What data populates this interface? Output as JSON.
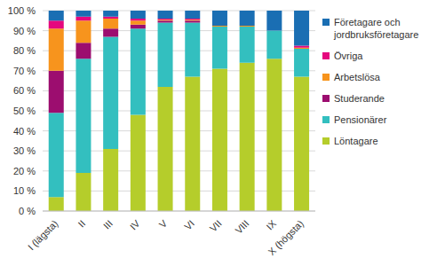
{
  "chart_data": {
    "type": "bar",
    "stacked": true,
    "grid": true,
    "legend": "right",
    "categories": [
      "I (lägsta)",
      "II",
      "III",
      "IV",
      "V",
      "VI",
      "VII",
      "VIII",
      "IX",
      "X (högsta)"
    ],
    "series": [
      {
        "name": "Löntagare",
        "color": "#b5cd2b",
        "values": [
          7,
          19,
          31,
          48,
          62,
          67,
          71,
          74,
          76,
          67
        ]
      },
      {
        "name": "Pensionärer",
        "color": "#33bfbf",
        "values": [
          42,
          57,
          56,
          43,
          32,
          27,
          21,
          18,
          14,
          14
        ]
      },
      {
        "name": "Studerande",
        "color": "#9c0d6f",
        "values": [
          21,
          8,
          4,
          2,
          1,
          1,
          0,
          0,
          0,
          0
        ]
      },
      {
        "name": "Arbetslösa",
        "color": "#f7941d",
        "values": [
          21,
          11,
          5,
          2,
          0.5,
          0.5,
          0.5,
          0.5,
          0,
          0.5
        ]
      },
      {
        "name": "Övriga",
        "color": "#e5087e",
        "values": [
          4,
          2,
          1,
          1,
          0.5,
          0.5,
          0,
          0,
          0,
          1
        ]
      },
      {
        "name": "Företagare och jordbruksföretagare",
        "color": "#1a6eb3",
        "values": [
          5,
          3,
          3,
          4,
          4,
          4,
          7.5,
          7.5,
          10,
          17.5
        ]
      }
    ],
    "ylim": [
      0,
      100
    ],
    "yticks": [
      {
        "value": 0,
        "label": "0 %"
      },
      {
        "value": 10,
        "label": "10 %"
      },
      {
        "value": 20,
        "label": "20 %"
      },
      {
        "value": 30,
        "label": "30 %"
      },
      {
        "value": 40,
        "label": "40 %"
      },
      {
        "value": 50,
        "label": "50 %"
      },
      {
        "value": 60,
        "label": "60 %"
      },
      {
        "value": 70,
        "label": "70 %"
      },
      {
        "value": 80,
        "label": "80 %"
      },
      {
        "value": 90,
        "label": "90 %"
      },
      {
        "value": 100,
        "label": "100 %"
      }
    ]
  }
}
